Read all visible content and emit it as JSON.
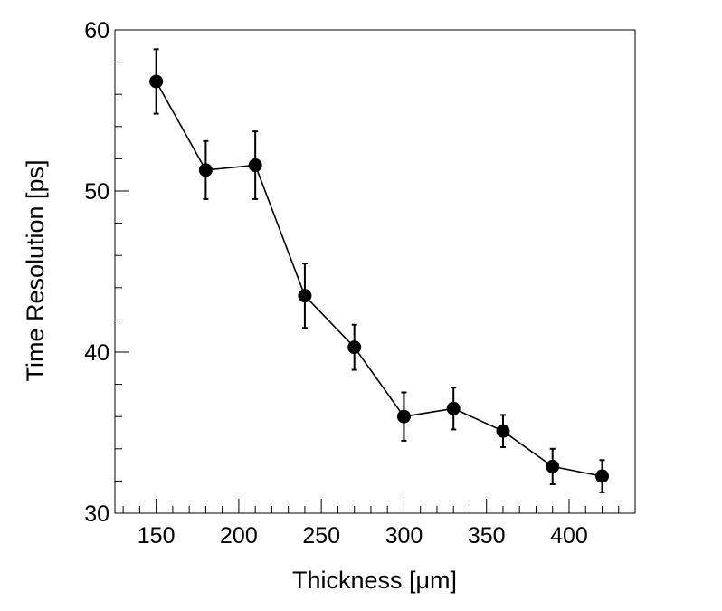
{
  "chart_data": {
    "type": "line",
    "title": "",
    "xlabel": "Thickness [μm]",
    "ylabel": "Time Resolution [ps]",
    "xlim": [
      125,
      440
    ],
    "ylim": [
      30,
      60
    ],
    "x_ticks": [
      150,
      200,
      250,
      300,
      350,
      400
    ],
    "y_ticks": [
      30,
      40,
      50,
      60
    ],
    "grid": false,
    "series": [
      {
        "name": "time-resolution",
        "x": [
          150,
          180,
          210,
          240,
          270,
          300,
          330,
          360,
          390,
          420
        ],
        "y": [
          56.8,
          51.3,
          51.6,
          43.5,
          40.3,
          36.0,
          36.5,
          35.1,
          32.9,
          32.3
        ],
        "yerr": [
          2.0,
          1.8,
          2.1,
          2.0,
          1.4,
          1.5,
          1.3,
          1.0,
          1.1,
          1.0
        ],
        "color": "#000000"
      }
    ]
  }
}
